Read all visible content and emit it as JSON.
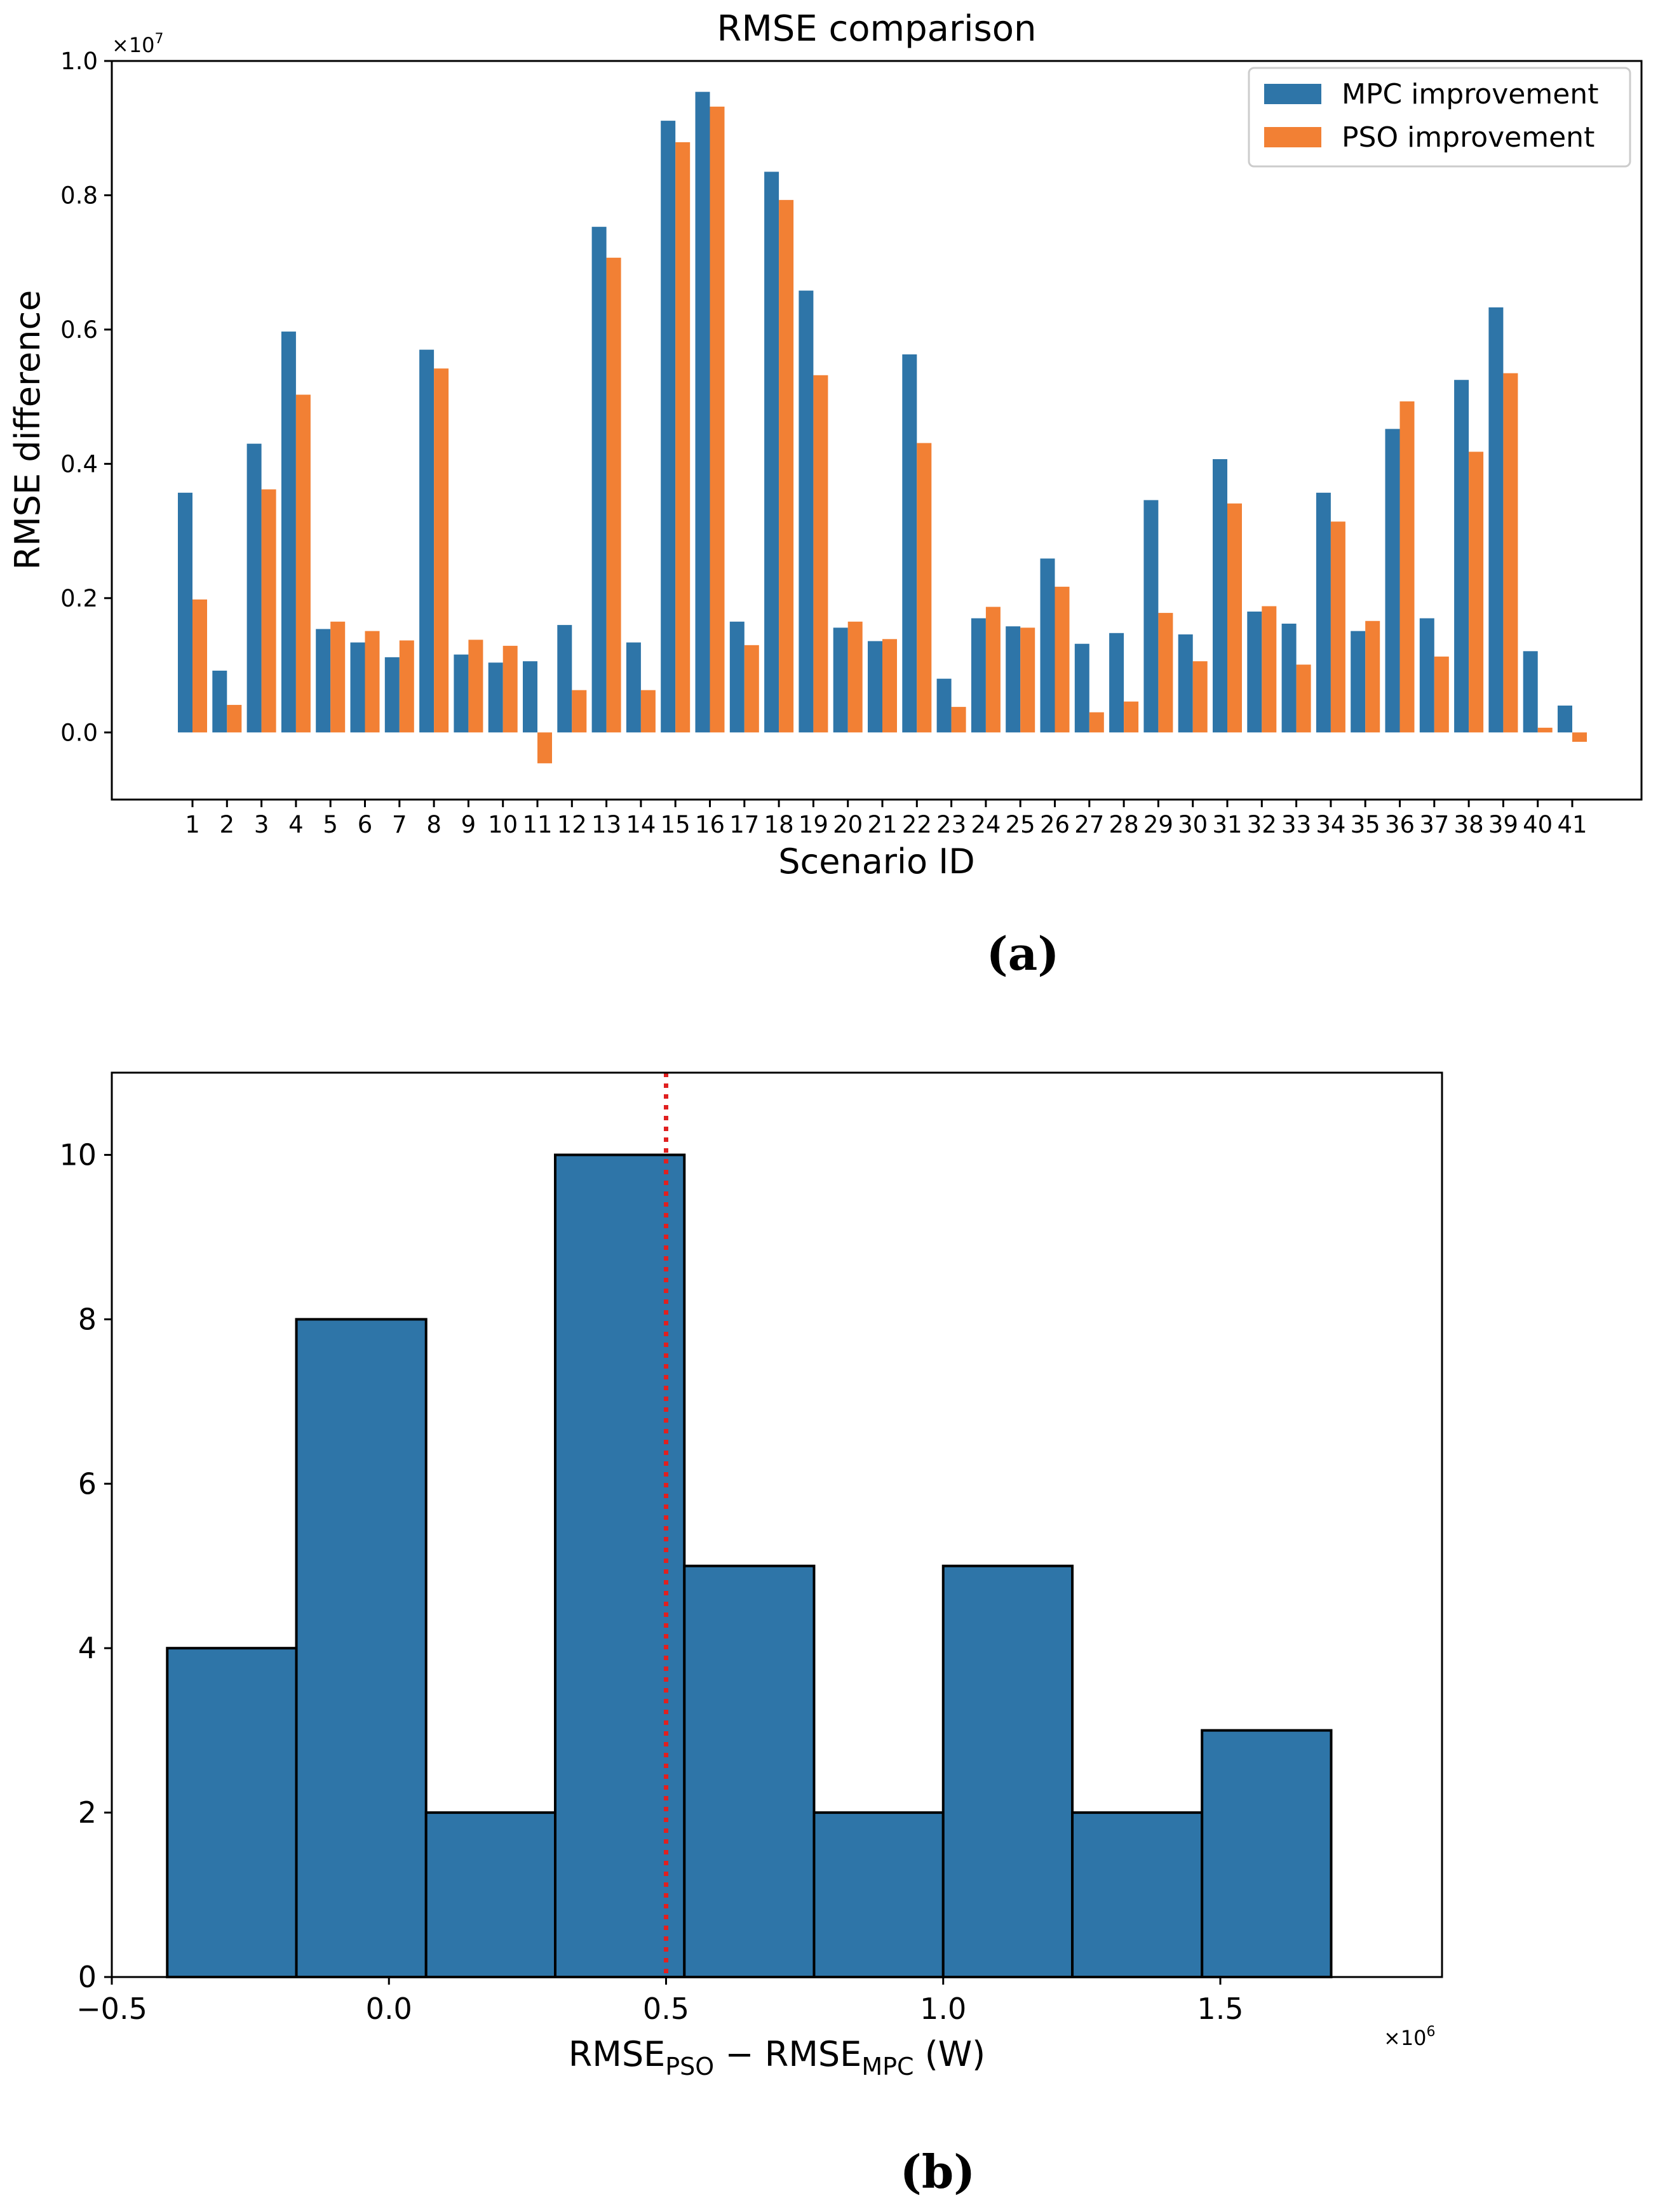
{
  "chart_data": [
    {
      "type": "bar",
      "title": "RMSE comparison",
      "xlabel": "Scenario ID",
      "ylabel": "RMSE difference",
      "y_multiplier": "×10",
      "y_multiplier_exp": "7",
      "ylim": [
        -0.1,
        1.0
      ],
      "yticks": [
        "0.0",
        "0.2",
        "0.4",
        "0.6",
        "0.8",
        "1.0"
      ],
      "ytick_values": [
        0.0,
        0.2,
        0.4,
        0.6,
        0.8,
        1.0
      ],
      "legend_position": "top-right",
      "panel_label": "(a)",
      "categories": [
        "1",
        "2",
        "3",
        "4",
        "5",
        "6",
        "7",
        "8",
        "9",
        "10",
        "11",
        "12",
        "13",
        "14",
        "15",
        "16",
        "17",
        "18",
        "19",
        "20",
        "21",
        "22",
        "23",
        "24",
        "25",
        "26",
        "27",
        "28",
        "29",
        "30",
        "31",
        "32",
        "33",
        "34",
        "35",
        "36",
        "37",
        "38",
        "39",
        "40",
        "41"
      ],
      "series": [
        {
          "name": "MPC improvement",
          "color": "#2e75a8",
          "values": [
            0.357,
            0.092,
            0.43,
            0.597,
            0.154,
            0.134,
            0.112,
            0.57,
            0.116,
            0.104,
            0.106,
            0.16,
            0.753,
            0.134,
            0.911,
            0.954,
            0.165,
            0.835,
            0.658,
            0.156,
            0.136,
            0.563,
            0.08,
            0.17,
            0.158,
            0.259,
            0.132,
            0.148,
            0.346,
            0.146,
            0.407,
            0.18,
            0.162,
            0.357,
            0.151,
            0.452,
            0.17,
            0.525,
            0.633,
            0.121,
            0.04
          ]
        },
        {
          "name": "PSO improvement",
          "color": "#f28034",
          "values": [
            0.198,
            0.041,
            0.362,
            0.503,
            0.165,
            0.151,
            0.137,
            0.542,
            0.138,
            0.129,
            -0.046,
            0.063,
            0.707,
            0.063,
            0.879,
            0.932,
            0.13,
            0.793,
            0.532,
            0.165,
            0.139,
            0.431,
            0.038,
            0.187,
            0.156,
            0.217,
            0.03,
            0.046,
            0.178,
            0.106,
            0.341,
            0.188,
            0.101,
            0.314,
            0.166,
            0.493,
            0.113,
            0.418,
            0.535,
            0.007,
            -0.014
          ]
        }
      ]
    },
    {
      "type": "histogram",
      "xlabel_main": "RMSE",
      "xlabel_sub1": "PSO",
      "xlabel_mid": " − RMSE",
      "xlabel_sub2": "MPC",
      "xlabel_unit": " (W)",
      "x_multiplier": "×10",
      "x_multiplier_exp": "6",
      "xlim": [
        -0.5,
        1.9
      ],
      "ylim": [
        0,
        11
      ],
      "xticks": [
        "−0.5",
        "0.0",
        "0.5",
        "1.0",
        "1.5"
      ],
      "xtick_values": [
        -0.5,
        0.0,
        0.5,
        1.0,
        1.5
      ],
      "yticks": [
        "0",
        "2",
        "4",
        "6",
        "8",
        "10"
      ],
      "ytick_values": [
        0,
        2,
        4,
        6,
        8,
        10
      ],
      "bin_edges": [
        -0.4,
        -0.167,
        0.067,
        0.3,
        0.533,
        0.767,
        1.0,
        1.233,
        1.467,
        1.7
      ],
      "counts": [
        4,
        8,
        2,
        10,
        5,
        2,
        5,
        2,
        3
      ],
      "bar_color": "#2e75a8",
      "reference_line": {
        "x": 0.5,
        "color": "#e02020",
        "style": "dotted"
      },
      "panel_label": "(b)"
    }
  ]
}
